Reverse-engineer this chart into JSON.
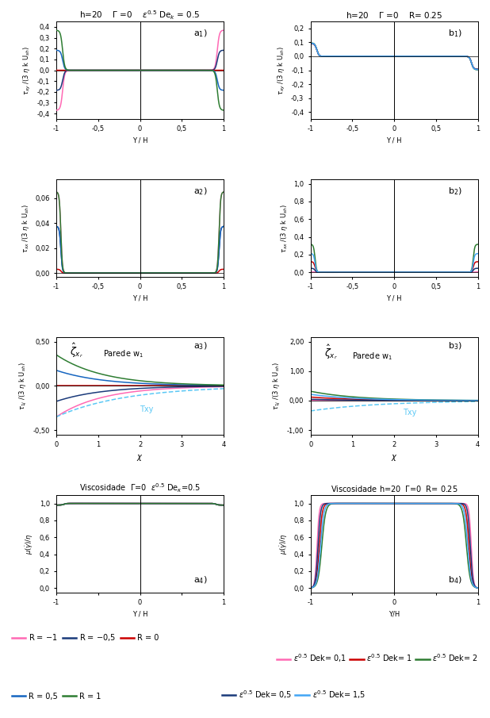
{
  "colors_a": [
    "#ff69b4",
    "#1a3a7a",
    "#cc0000",
    "#1565c0",
    "#2e7d32"
  ],
  "colors_b": [
    "#ff69b4",
    "#cc0000",
    "#2e7d32",
    "#1a3a7a",
    "#42a5f5"
  ],
  "R_values": [
    -1,
    -0.5,
    0,
    0.5,
    1
  ],
  "Dek_values": [
    0.1,
    1.0,
    2.0,
    0.5,
    1.5
  ],
  "bg_color": "#ffffff",
  "wall_color": "#5bc8f5",
  "txy_a1_ylim": [
    -0.45,
    0.45
  ],
  "txy_b1_ylim": [
    -0.45,
    0.25
  ],
  "txx_a2_ylim": [
    -0.003,
    0.075
  ],
  "txx_b2_ylim": [
    -0.05,
    1.1
  ],
  "wall_a3_ylim": [
    -0.55,
    0.55
  ],
  "wall_b3_ylim": [
    -1.15,
    2.15
  ],
  "mu_ylim": [
    -0.05,
    1.1
  ]
}
